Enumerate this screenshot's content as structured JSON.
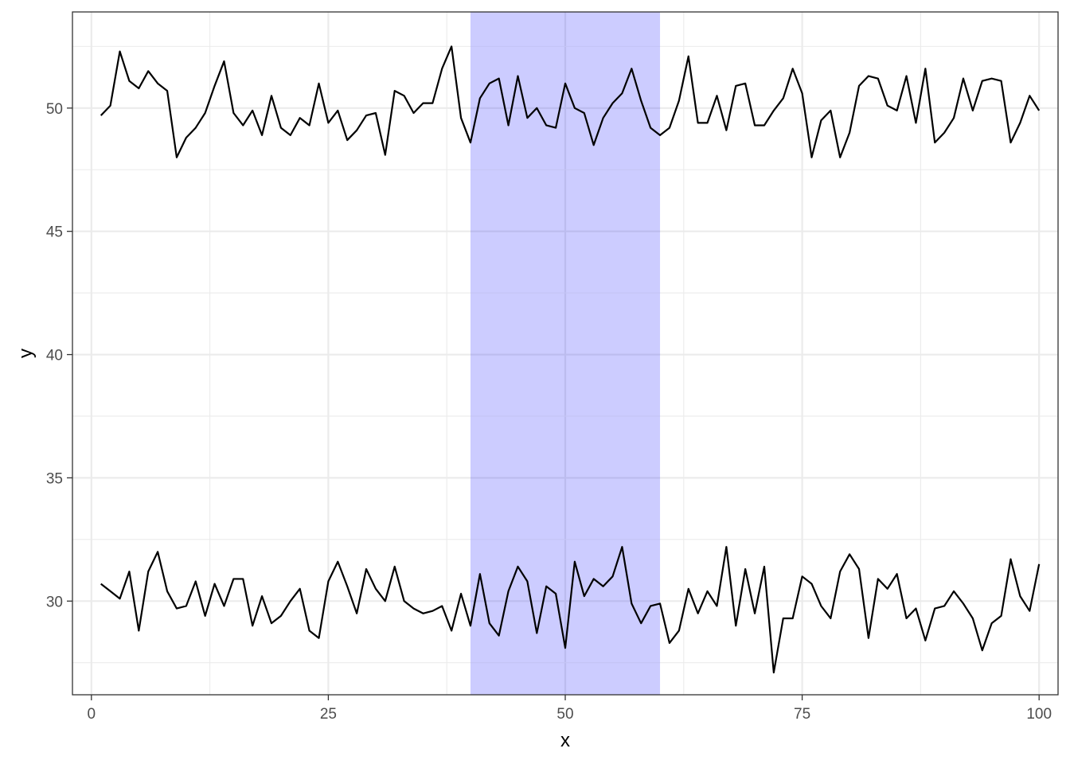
{
  "chart_data": {
    "type": "line",
    "title": "",
    "xlabel": "x",
    "ylabel": "y",
    "xlim": [
      -2,
      102
    ],
    "ylim": [
      26.2,
      53.9
    ],
    "x_ticks": [
      0,
      25,
      50,
      75,
      100
    ],
    "y_ticks": [
      30,
      35,
      40,
      45,
      50
    ],
    "x_tick_labels": [
      "0",
      "25",
      "50",
      "75",
      "100"
    ],
    "y_tick_labels": [
      "30",
      "35",
      "40",
      "45",
      "50"
    ],
    "grid": true,
    "legend": "none",
    "highlight_band": {
      "x_start": 40,
      "x_end": 60,
      "color": "#ccccff"
    },
    "x": [
      1,
      2,
      3,
      4,
      5,
      6,
      7,
      8,
      9,
      10,
      11,
      12,
      13,
      14,
      15,
      16,
      17,
      18,
      19,
      20,
      21,
      22,
      23,
      24,
      25,
      26,
      27,
      28,
      29,
      30,
      31,
      32,
      33,
      34,
      35,
      36,
      37,
      38,
      39,
      40,
      41,
      42,
      43,
      44,
      45,
      46,
      47,
      48,
      49,
      50,
      51,
      52,
      53,
      54,
      55,
      56,
      57,
      58,
      59,
      60,
      61,
      62,
      63,
      64,
      65,
      66,
      67,
      68,
      69,
      70,
      71,
      72,
      73,
      74,
      75,
      76,
      77,
      78,
      79,
      80,
      81,
      82,
      83,
      84,
      85,
      86,
      87,
      88,
      89,
      90,
      91,
      92,
      93,
      94,
      95,
      96,
      97,
      98,
      99,
      100
    ],
    "series": [
      {
        "line_color": "#000000",
        "values": [
          49.7,
          50.1,
          52.3,
          51.1,
          50.8,
          51.5,
          51.0,
          50.7,
          48.0,
          48.8,
          49.2,
          49.8,
          50.9,
          51.9,
          49.8,
          49.3,
          49.9,
          48.9,
          50.5,
          49.2,
          48.9,
          49.6,
          49.3,
          51.0,
          49.4,
          49.9,
          48.7,
          49.1,
          49.7,
          49.8,
          48.1,
          50.7,
          50.5,
          49.8,
          50.2,
          50.2,
          51.6,
          52.5,
          49.6,
          48.6,
          50.4,
          51.0,
          51.2,
          49.3,
          51.3,
          49.6,
          50.0,
          49.3,
          49.2,
          51.0,
          50.0,
          49.8,
          48.5,
          49.6,
          50.2,
          50.6,
          51.6,
          50.3,
          49.2,
          48.9,
          49.2,
          50.3,
          52.1,
          49.4,
          49.4,
          50.5,
          49.1,
          50.9,
          51.0,
          49.3,
          49.3,
          49.9,
          50.4,
          51.6,
          50.6,
          48.0,
          49.5,
          49.9,
          48.0,
          49.0,
          50.9,
          51.3,
          51.2,
          50.1,
          49.9,
          51.3,
          49.4,
          51.6,
          48.6,
          49.0,
          49.6,
          51.2,
          49.9,
          51.1,
          51.2,
          51.1,
          48.6,
          49.4,
          50.5,
          49.9
        ]
      },
      {
        "line_color": "#000000",
        "values": [
          30.7,
          30.4,
          30.1,
          31.2,
          28.8,
          31.2,
          32.0,
          30.4,
          29.7,
          29.8,
          30.8,
          29.4,
          30.7,
          29.8,
          30.9,
          30.9,
          29.0,
          30.2,
          29.1,
          29.4,
          30.0,
          30.5,
          28.8,
          28.5,
          30.8,
          31.6,
          30.6,
          29.5,
          31.3,
          30.5,
          30.0,
          31.4,
          30.0,
          29.7,
          29.5,
          29.6,
          29.8,
          28.8,
          30.3,
          29.0,
          31.1,
          29.1,
          28.6,
          30.4,
          31.4,
          30.8,
          28.7,
          30.6,
          30.3,
          28.1,
          31.6,
          30.2,
          30.9,
          30.6,
          31.0,
          32.2,
          29.9,
          29.1,
          29.8,
          29.9,
          28.3,
          28.8,
          30.5,
          29.5,
          30.4,
          29.8,
          32.2,
          29.0,
          31.3,
          29.5,
          31.4,
          27.1,
          29.3,
          29.3,
          31.0,
          30.7,
          29.8,
          29.3,
          31.2,
          31.9,
          31.3,
          28.5,
          30.9,
          30.5,
          31.1,
          29.3,
          29.7,
          28.4,
          29.7,
          29.8,
          30.4,
          29.9,
          29.3,
          28.0,
          29.1,
          29.4,
          31.7,
          30.2,
          29.6,
          31.5
        ]
      }
    ]
  }
}
